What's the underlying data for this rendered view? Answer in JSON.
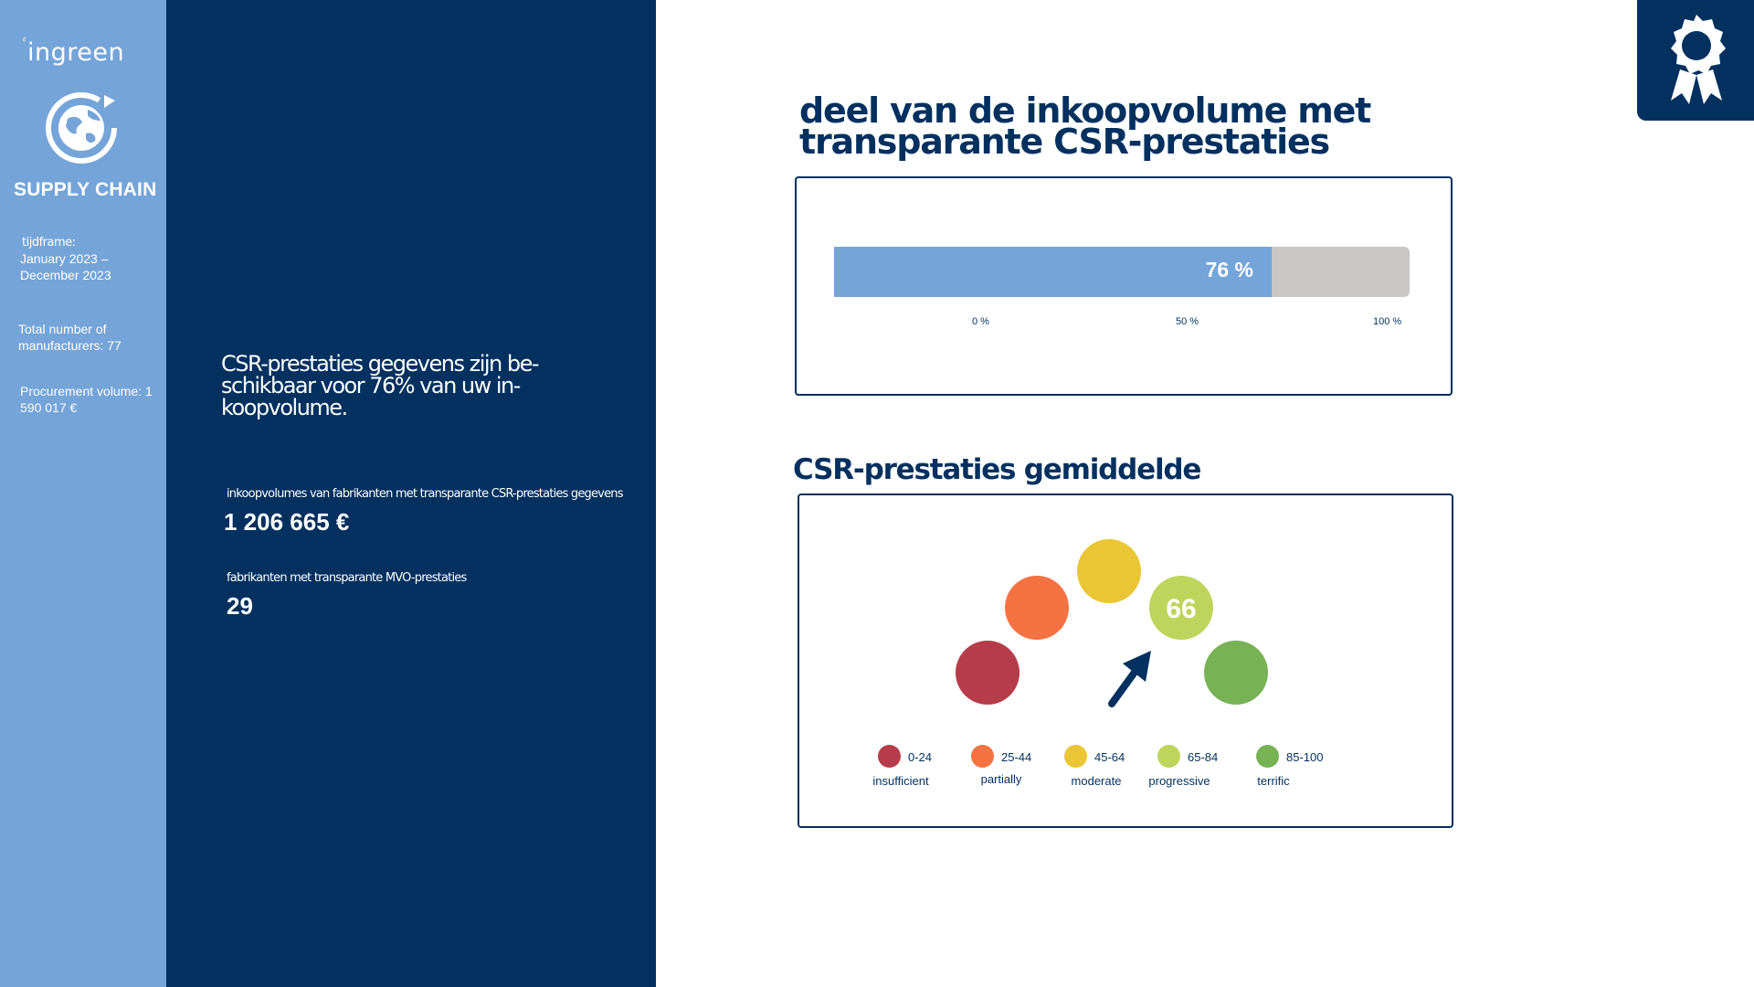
{
  "sidebar": {
    "logo": "ingreen",
    "title": "SUPPLY CHAIN",
    "timeframe_label": "tijdframe:",
    "timeframe_value": "January 2023 – December 2023",
    "manufacturers": "Total number of manufacturers: 77",
    "procurement": "Procurement volume: 1 590 017 €"
  },
  "panel": {
    "summary": "CSR-prestaties gegevens zijn be-schikbaar voor 76% van uw in-koopvolume.",
    "kpi1_label": "inkoopvolumes van fabrikanten met transparante CSR-prestaties gegevens",
    "kpi1_value": "1 206 665 €",
    "kpi2_label": "fabrikanten met transparante MVO-prestaties",
    "kpi2_value": "29"
  },
  "badge": {
    "icon": "award-ribbon-icon"
  },
  "section1": {
    "title": "deel van de inkoopvolume met transparante CSR-prestaties",
    "bar_label": "76 %",
    "ticks": [
      "0 %",
      "50 %",
      "100 %"
    ]
  },
  "section2": {
    "title": "CSR-prestaties gemiddelde",
    "score": "66",
    "legend": [
      {
        "range": "0-24",
        "name": "insufficient",
        "color": "#b63c4a"
      },
      {
        "range": "25-44",
        "name": "partially",
        "color": "#f57242"
      },
      {
        "range": "45-64",
        "name": "moderate",
        "color": "#eac634"
      },
      {
        "range": "65-84",
        "name": "progressive",
        "color": "#bed55c"
      },
      {
        "range": "85-100",
        "name": "terrific",
        "color": "#77b254"
      }
    ]
  },
  "chart_data": [
    {
      "type": "bar",
      "categories": [
        ""
      ],
      "values": [
        76
      ],
      "xlabel": "",
      "ylabel": "",
      "ylim": [
        0,
        100
      ],
      "ticks": [
        "0 %",
        "50 %",
        "100 %"
      ],
      "data_label": "76 %"
    },
    {
      "type": "gauge",
      "value": 66,
      "bands": [
        {
          "range": "0-24",
          "name": "insufficient"
        },
        {
          "range": "25-44",
          "name": "partially"
        },
        {
          "range": "45-64",
          "name": "moderate"
        },
        {
          "range": "65-84",
          "name": "progressive"
        },
        {
          "range": "85-100",
          "name": "terrific"
        }
      ]
    }
  ],
  "colors": {
    "sidebar": "#74a4d8",
    "navy": "#02305f",
    "bar_fill": "#74a4d8",
    "bar_track": "#c8c7c6"
  }
}
